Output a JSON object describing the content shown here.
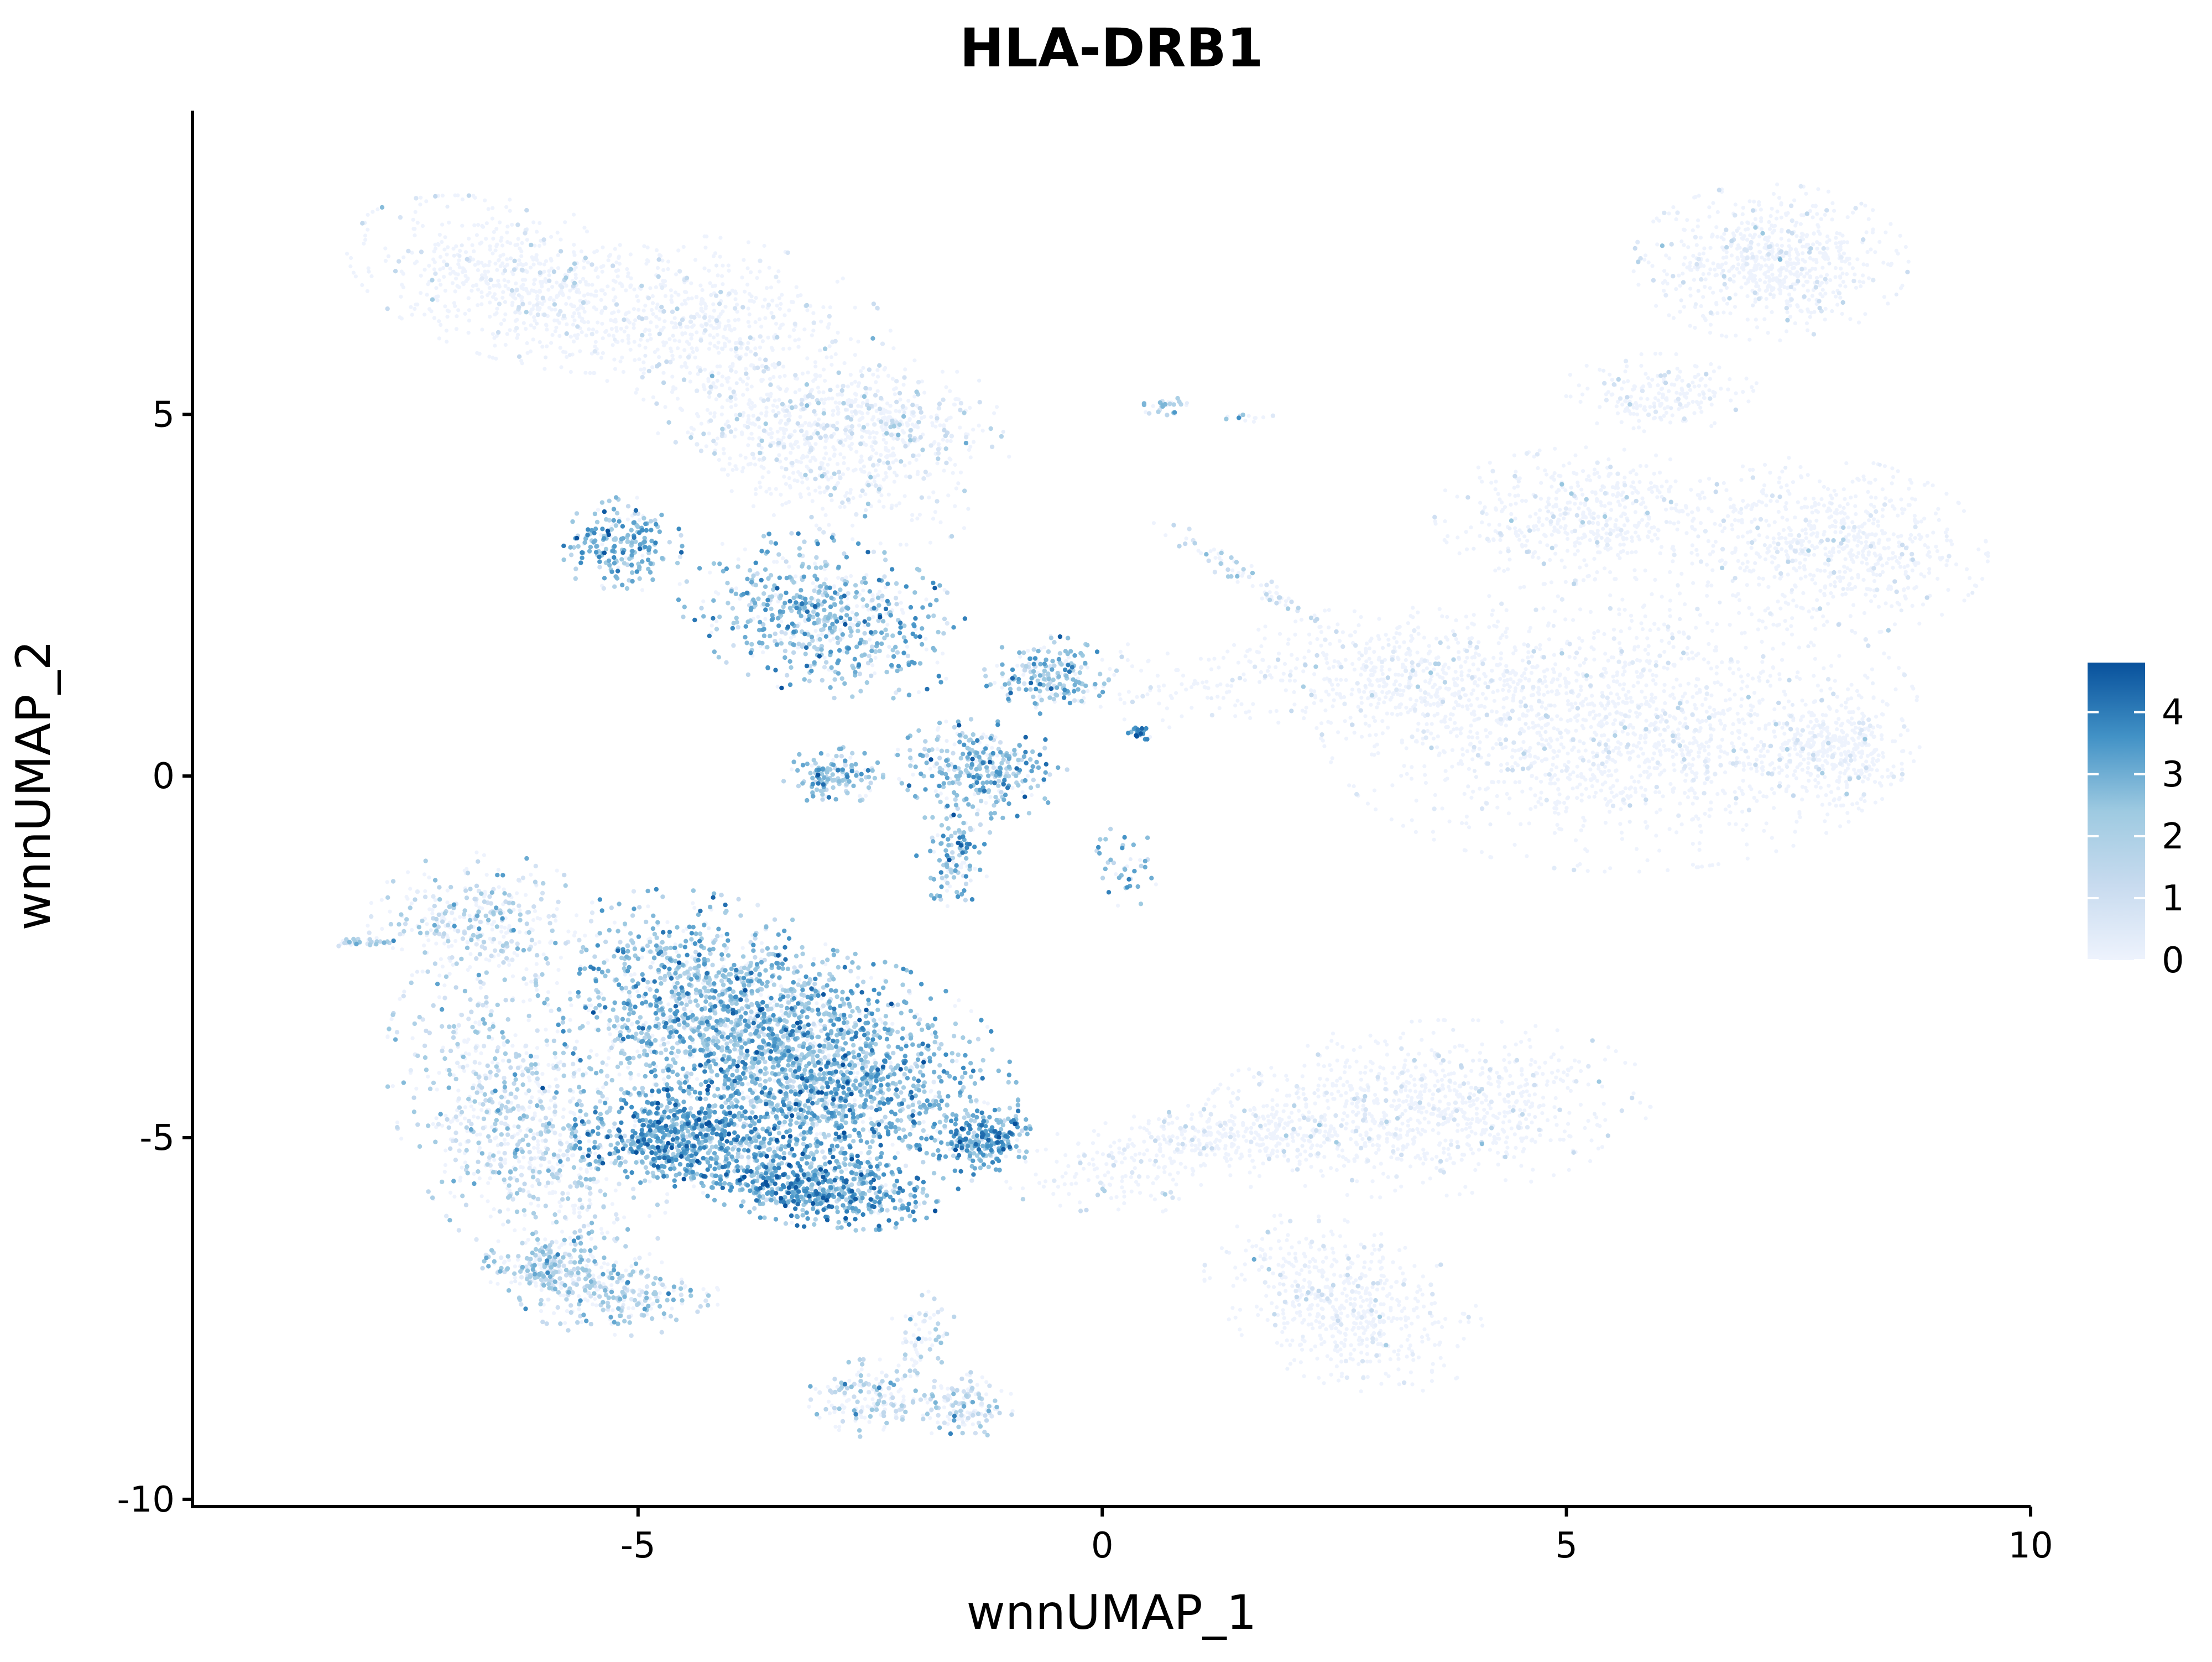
{
  "chart_data": {
    "type": "scatter",
    "title": "HLA-DRB1",
    "xlabel": "wnnUMAP_1",
    "ylabel": "wnnUMAP_2",
    "xlim": [
      -9.8,
      10
    ],
    "ylim": [
      -10.1,
      9.2
    ],
    "x_ticks": [
      -5,
      0,
      5,
      10
    ],
    "x_tick_labels": [
      "-5",
      "0",
      "5",
      "10"
    ],
    "y_ticks": [
      -10,
      -5,
      0,
      5
    ],
    "y_tick_labels": [
      "-10",
      "-5",
      "0",
      "5"
    ],
    "grid": false,
    "legend_position": "right",
    "colorbar": {
      "min": 0,
      "max": 4.8,
      "ticks": [
        0,
        1,
        2,
        3,
        4
      ],
      "tick_labels": [
        "0",
        "1",
        "2",
        "3",
        "4"
      ],
      "colors": [
        "#eef3fd",
        "#c8dbef",
        "#9ecae1",
        "#4292c6",
        "#08519c"
      ]
    },
    "clusters": [
      {
        "cx": -6.2,
        "cy": 6.8,
        "rx": 1.5,
        "ry": 0.8,
        "angle": -20,
        "n": 700,
        "level": 0.15
      },
      {
        "cx": -4.1,
        "cy": 6.2,
        "rx": 1.4,
        "ry": 0.9,
        "angle": -15,
        "n": 500,
        "level": 0.25
      },
      {
        "cx": -2.4,
        "cy": 5.0,
        "rx": 1.2,
        "ry": 0.6,
        "angle": -10,
        "n": 400,
        "level": 0.7
      },
      {
        "cx": -3.2,
        "cy": 4.5,
        "rx": 1.5,
        "ry": 0.7,
        "angle": -30,
        "n": 500,
        "level": 0.6
      },
      {
        "cx": -5.2,
        "cy": 3.2,
        "rx": 0.5,
        "ry": 0.5,
        "angle": 0,
        "n": 220,
        "level": 2.7
      },
      {
        "cx": -3.0,
        "cy": 2.2,
        "rx": 1.2,
        "ry": 0.8,
        "angle": -20,
        "n": 650,
        "level": 2.5
      },
      {
        "cx": -0.6,
        "cy": 1.4,
        "rx": 0.5,
        "ry": 0.4,
        "angle": 0,
        "n": 200,
        "level": 2.4
      },
      {
        "cx": -1.3,
        "cy": 0.1,
        "rx": 0.7,
        "ry": 0.5,
        "angle": -10,
        "n": 320,
        "level": 2.6
      },
      {
        "cx": -2.9,
        "cy": 0.0,
        "rx": 0.4,
        "ry": 0.3,
        "angle": 0,
        "n": 150,
        "level": 2.5
      },
      {
        "cx": -1.6,
        "cy": -1.0,
        "rx": 0.3,
        "ry": 0.6,
        "angle": 0,
        "n": 120,
        "level": 2.6
      },
      {
        "cx": 0.4,
        "cy": 0.6,
        "rx": 0.1,
        "ry": 0.1,
        "angle": 0,
        "n": 25,
        "level": 3.8
      },
      {
        "cx": 0.3,
        "cy": -1.2,
        "rx": 0.3,
        "ry": 0.5,
        "angle": 0,
        "n": 40,
        "level": 2.6
      },
      {
        "cx": 1.6,
        "cy": 2.7,
        "rx": 1.1,
        "ry": 0.12,
        "angle": -40,
        "n": 80,
        "level": 1.4
      },
      {
        "cx": 0.7,
        "cy": 5.1,
        "rx": 0.2,
        "ry": 0.1,
        "angle": 0,
        "n": 30,
        "level": 2.2
      },
      {
        "cx": 1.6,
        "cy": 4.95,
        "rx": 0.2,
        "ry": 0.05,
        "angle": 0,
        "n": 12,
        "level": 1.8
      },
      {
        "cx": 0.8,
        "cy": 1.2,
        "rx": 1.0,
        "ry": 0.5,
        "angle": 0,
        "n": 90,
        "level": 0.1
      },
      {
        "cx": 7.2,
        "cy": 7.1,
        "rx": 1.1,
        "ry": 0.8,
        "angle": 0,
        "n": 700,
        "level": 0.05
      },
      {
        "cx": 5.2,
        "cy": 3.6,
        "rx": 1.2,
        "ry": 0.7,
        "angle": 0,
        "n": 500,
        "level": 0.05
      },
      {
        "cx": 7.8,
        "cy": 3.2,
        "rx": 1.3,
        "ry": 0.9,
        "angle": -10,
        "n": 700,
        "level": 0.05
      },
      {
        "cx": 5.6,
        "cy": 0.7,
        "rx": 2.4,
        "ry": 1.5,
        "angle": 0,
        "n": 1700,
        "level": 0.06
      },
      {
        "cx": 7.9,
        "cy": 0.4,
        "rx": 0.6,
        "ry": 0.6,
        "angle": 0,
        "n": 350,
        "level": 0.06
      },
      {
        "cx": 3.0,
        "cy": 1.4,
        "rx": 1.3,
        "ry": 0.7,
        "angle": 0,
        "n": 400,
        "level": 0.08
      },
      {
        "cx": 6.0,
        "cy": 5.3,
        "rx": 0.8,
        "ry": 0.4,
        "angle": 0,
        "n": 200,
        "level": 0.05
      },
      {
        "cx": -4.2,
        "cy": -3.2,
        "rx": 1.5,
        "ry": 1.1,
        "angle": -30,
        "n": 1300,
        "level": 2.4
      },
      {
        "cx": -3.0,
        "cy": -4.2,
        "rx": 1.6,
        "ry": 1.3,
        "angle": -25,
        "n": 1600,
        "level": 2.7
      },
      {
        "cx": -4.5,
        "cy": -5.0,
        "rx": 0.9,
        "ry": 0.5,
        "angle": 0,
        "n": 650,
        "level": 3.1
      },
      {
        "cx": -3.1,
        "cy": -5.7,
        "rx": 1.0,
        "ry": 0.4,
        "angle": -10,
        "n": 550,
        "level": 3.0
      },
      {
        "cx": -1.3,
        "cy": -5.0,
        "rx": 0.4,
        "ry": 0.4,
        "angle": 0,
        "n": 220,
        "level": 3.0
      },
      {
        "cx": -6.2,
        "cy": -4.8,
        "rx": 1.0,
        "ry": 1.8,
        "angle": 20,
        "n": 900,
        "level": 1.6
      },
      {
        "cx": -6.0,
        "cy": -6.8,
        "rx": 0.5,
        "ry": 0.3,
        "angle": 0,
        "n": 220,
        "level": 1.8
      },
      {
        "cx": -5.2,
        "cy": -7.2,
        "rx": 0.8,
        "ry": 0.4,
        "angle": 0,
        "n": 260,
        "level": 1.8
      },
      {
        "cx": -6.7,
        "cy": -2.0,
        "rx": 0.9,
        "ry": 0.7,
        "angle": 0,
        "n": 350,
        "level": 1.3
      },
      {
        "cx": -8.0,
        "cy": -2.3,
        "rx": 0.3,
        "ry": 0.05,
        "angle": 0,
        "n": 35,
        "level": 1.8
      },
      {
        "cx": -2.5,
        "cy": -8.6,
        "rx": 0.5,
        "ry": 0.4,
        "angle": 0,
        "n": 160,
        "level": 1.6
      },
      {
        "cx": -1.5,
        "cy": -8.7,
        "rx": 0.4,
        "ry": 0.4,
        "angle": 0,
        "n": 140,
        "level": 1.3
      },
      {
        "cx": -1.9,
        "cy": -7.8,
        "rx": 0.3,
        "ry": 0.5,
        "angle": 0,
        "n": 70,
        "level": 1.4
      },
      {
        "cx": 3.5,
        "cy": -4.6,
        "rx": 1.8,
        "ry": 0.9,
        "angle": 5,
        "n": 900,
        "level": 0.06
      },
      {
        "cx": 1.5,
        "cy": -5.0,
        "rx": 1.2,
        "ry": 0.35,
        "angle": 0,
        "n": 300,
        "level": 0.08
      },
      {
        "cx": 2.6,
        "cy": -7.3,
        "rx": 1.2,
        "ry": 0.8,
        "angle": -30,
        "n": 600,
        "level": 0.06
      },
      {
        "cx": 0.3,
        "cy": -5.5,
        "rx": 1.0,
        "ry": 0.5,
        "angle": 0,
        "n": 150,
        "level": 0.2
      }
    ]
  }
}
